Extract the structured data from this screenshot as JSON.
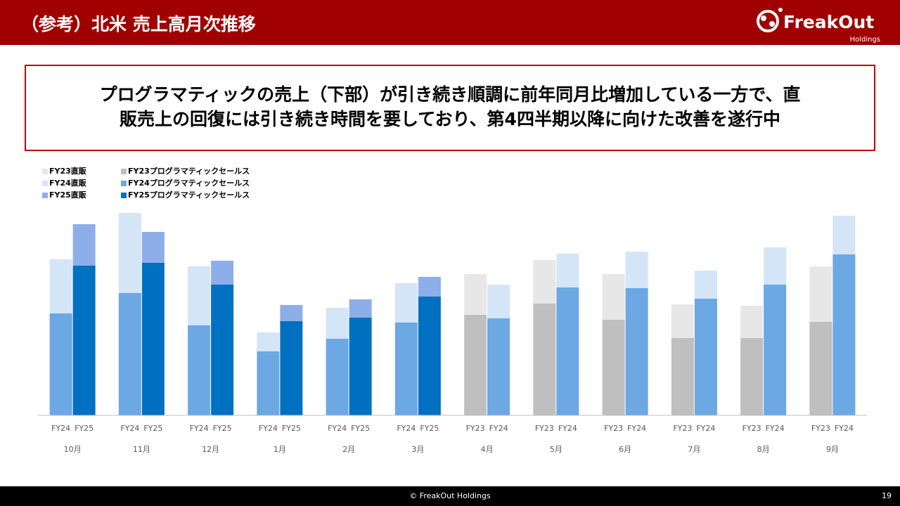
{
  "header": {
    "title": "（参考）北米 売上高月次推移"
  },
  "logo": {
    "name": "FreakOut",
    "sub": "Holdings"
  },
  "callout": {
    "lines": [
      "プログラマティックの売上（下部）が引き続き順調に前年同月比増加している一方で、直",
      "販売上の回復には引き続き時間を要しており、第4四半期以降に向けた改善を遂行中"
    ]
  },
  "chart_data": {
    "type": "bar",
    "stacked": true,
    "legend": "top-left",
    "categories": [
      "10月",
      "11月",
      "12月",
      "1月",
      "2月",
      "3月",
      "4月",
      "5月",
      "6月",
      "7月",
      "8月",
      "9月"
    ],
    "bar_labels": [
      [
        "FY24",
        "FY25"
      ],
      [
        "FY24",
        "FY25"
      ],
      [
        "FY24",
        "FY25"
      ],
      [
        "FY24",
        "FY25"
      ],
      [
        "FY24",
        "FY25"
      ],
      [
        "FY24",
        "FY25"
      ],
      [
        "FY23",
        "FY24"
      ],
      [
        "FY23",
        "FY24"
      ],
      [
        "FY23",
        "FY24"
      ],
      [
        "FY23",
        "FY24"
      ],
      [
        "FY23",
        "FY24"
      ],
      [
        "FY23",
        "FY24"
      ]
    ],
    "ylim": [
      0,
      300
    ],
    "series": [
      {
        "name": "FY23直販",
        "stack": "FY23",
        "color": "#e7e7e7",
        "values": [
          null,
          null,
          null,
          null,
          null,
          null,
          58,
          62,
          65,
          48,
          46,
          79
        ]
      },
      {
        "name": "FY24直販",
        "stack": "FY24",
        "color": "#d4e5f7",
        "values": [
          77,
          114,
          84,
          27,
          44,
          56,
          48,
          48,
          52,
          40,
          53,
          55
        ]
      },
      {
        "name": "FY25直販",
        "stack": "FY25",
        "color": "#8eaee9",
        "values": [
          59,
          44,
          34,
          23,
          26,
          28,
          null,
          null,
          null,
          null,
          null,
          null
        ]
      },
      {
        "name": "FY23プログラマティックセールス",
        "stack": "FY23",
        "color": "#bfbfbf",
        "values": [
          null,
          null,
          null,
          null,
          null,
          null,
          143,
          159,
          136,
          110,
          110,
          133
        ]
      },
      {
        "name": "FY24プログラマティックセールス",
        "stack": "FY24",
        "color": "#6ca8e3",
        "values": [
          145,
          174,
          128,
          91,
          109,
          132,
          138,
          182,
          181,
          166,
          186,
          229
        ]
      },
      {
        "name": "FY25プログラマティックセールス",
        "stack": "FY25",
        "color": "#0070c0",
        "values": [
          213,
          217,
          186,
          134,
          139,
          169,
          null,
          null,
          null,
          null,
          null,
          null
        ]
      }
    ]
  },
  "footer": {
    "copyright": "© FreakOut Holdings",
    "page": 19
  }
}
